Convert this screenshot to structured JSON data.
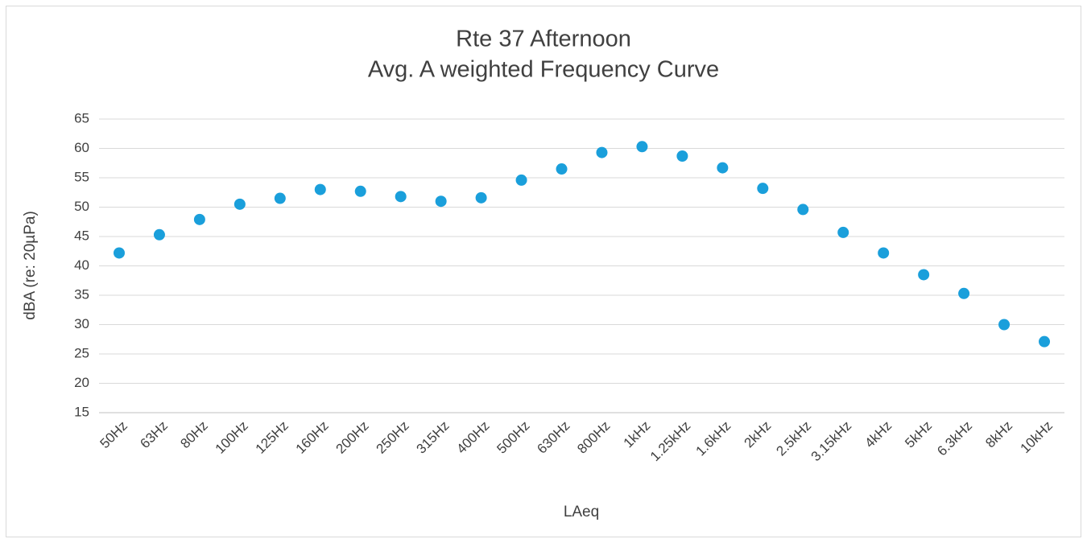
{
  "chart_data": {
    "type": "line",
    "title": "Rte 37 Afternoon",
    "subtitle": "Avg. A weighted Frequency Curve",
    "x_label": "LAeq",
    "y_label": "dBA (re: 20µPa)",
    "categories": [
      "50Hz",
      "63Hz",
      "80Hz",
      "100Hz",
      "125Hz",
      "160Hz",
      "200Hz",
      "250Hz",
      "315Hz",
      "400Hz",
      "500Hz",
      "630Hz",
      "800Hz",
      "1kHz",
      "1.25kHz",
      "1.6kHz",
      "2kHz",
      "2.5kHz",
      "3.15kHz",
      "4kHz",
      "5kHz",
      "6.3kHz",
      "8kHz",
      "10kHz"
    ],
    "series": [
      {
        "name": "LAeq",
        "color": "#1a9fdb",
        "values": [
          42.2,
          45.3,
          47.9,
          50.5,
          51.5,
          53.0,
          52.7,
          51.8,
          51.0,
          51.6,
          54.6,
          56.5,
          59.3,
          60.3,
          58.7,
          56.7,
          53.2,
          49.6,
          45.7,
          42.2,
          38.5,
          35.3,
          30.0,
          27.1
        ]
      }
    ],
    "ylim": [
      15,
      65
    ],
    "yticks": [
      15,
      20,
      25,
      30,
      35,
      40,
      45,
      50,
      55,
      60,
      65
    ],
    "grid": true
  }
}
